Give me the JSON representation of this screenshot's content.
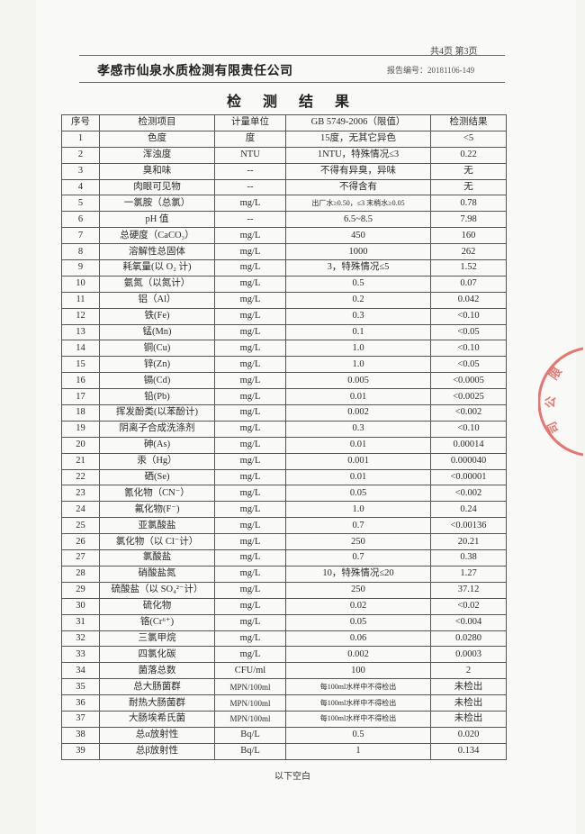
{
  "header": {
    "page_indicator": "共4页 第3页",
    "company": "孝感市仙泉水质检测有限责任公司",
    "report_number": "报告编号：20181106-149",
    "title": "检 测 结 果"
  },
  "table": {
    "columns": [
      "序号",
      "检测项目",
      "计量单位",
      "GB 5749-2006（限值）",
      "检测结果"
    ],
    "rows": [
      [
        "1",
        "色度",
        "度",
        "15度，无其它异色",
        "<5"
      ],
      [
        "2",
        "浑浊度",
        "NTU",
        "1NTU，特殊情况≤3",
        "0.22"
      ],
      [
        "3",
        "臭和味",
        "--",
        "不得有异臭，异味",
        "无"
      ],
      [
        "4",
        "肉眼可见物",
        "--",
        "不得含有",
        "无"
      ],
      [
        "5",
        "一氯胺（总氯）",
        "mg/L",
        "出厂水≥0.50，≤3 末梢水≥0.05",
        "0.78"
      ],
      [
        "6",
        "pH 值",
        "--",
        "6.5~8.5",
        "7.98"
      ],
      [
        "7",
        "总硬度（CaCO₃）",
        "mg/L",
        "450",
        "160"
      ],
      [
        "8",
        "溶解性总固体",
        "mg/L",
        "1000",
        "262"
      ],
      [
        "9",
        "耗氧量(以 O₂ 计)",
        "mg/L",
        "3，特殊情况≤5",
        "1.52"
      ],
      [
        "10",
        "氨氮（以氮计）",
        "mg/L",
        "0.5",
        "0.07"
      ],
      [
        "11",
        "铝（Al）",
        "mg/L",
        "0.2",
        "0.042"
      ],
      [
        "12",
        "铁(Fe)",
        "mg/L",
        "0.3",
        "<0.10"
      ],
      [
        "13",
        "锰(Mn)",
        "mg/L",
        "0.1",
        "<0.05"
      ],
      [
        "14",
        "铜(Cu)",
        "mg/L",
        "1.0",
        "<0.10"
      ],
      [
        "15",
        "锌(Zn)",
        "mg/L",
        "1.0",
        "<0.05"
      ],
      [
        "16",
        "镉(Cd)",
        "mg/L",
        "0.005",
        "<0.0005"
      ],
      [
        "17",
        "铅(Pb)",
        "mg/L",
        "0.01",
        "<0.0025"
      ],
      [
        "18",
        "挥发酚类(以苯酚计)",
        "mg/L",
        "0.002",
        "<0.002"
      ],
      [
        "19",
        "阴离子合成洗涤剂",
        "mg/L",
        "0.3",
        "<0.10"
      ],
      [
        "20",
        "砷(As)",
        "mg/L",
        "0.01",
        "0.00014"
      ],
      [
        "21",
        "汞（Hg）",
        "mg/L",
        "0.001",
        "0.000040"
      ],
      [
        "22",
        "硒(Se)",
        "mg/L",
        "0.01",
        "<0.00001"
      ],
      [
        "23",
        "氰化物（CN⁻）",
        "mg/L",
        "0.05",
        "<0.002"
      ],
      [
        "24",
        "氟化物(F⁻)",
        "mg/L",
        "1.0",
        "0.24"
      ],
      [
        "25",
        "亚氯酸盐",
        "mg/L",
        "0.7",
        "<0.00136"
      ],
      [
        "26",
        "氯化物（以 Cl⁻计）",
        "mg/L",
        "250",
        "20.21"
      ],
      [
        "27",
        "氯酸盐",
        "mg/L",
        "0.7",
        "0.38"
      ],
      [
        "28",
        "硝酸盐氮",
        "mg/L",
        "10，特殊情况≤20",
        "1.27"
      ],
      [
        "29",
        "硫酸盐（以 SO₄²⁻计）",
        "mg/L",
        "250",
        "37.12"
      ],
      [
        "30",
        "硫化物",
        "mg/L",
        "0.02",
        "<0.02"
      ],
      [
        "31",
        "铬(Cr⁶⁺)",
        "mg/L",
        "0.05",
        "<0.004"
      ],
      [
        "32",
        "三氯甲烷",
        "mg/L",
        "0.06",
        "0.0280"
      ],
      [
        "33",
        "四氯化碳",
        "mg/L",
        "0.002",
        "0.0003"
      ],
      [
        "34",
        "菌落总数",
        "CFU/ml",
        "100",
        "2"
      ],
      [
        "35",
        "总大肠菌群",
        "MPN/100ml",
        "每100ml水样中不得检出",
        "未检出"
      ],
      [
        "36",
        "耐热大肠菌群",
        "MPN/100ml",
        "每100ml水样中不得检出",
        "未检出"
      ],
      [
        "37",
        "大肠埃希氏菌",
        "MPN/100ml",
        "每100ml水样中不得检出",
        "未检出"
      ],
      [
        "38",
        "总α放射性",
        "Bq/L",
        "0.5",
        "0.020"
      ],
      [
        "39",
        "总β放射性",
        "Bq/L",
        "1",
        "0.134"
      ]
    ]
  },
  "footer": {
    "note": "以下空白"
  },
  "stamp": {
    "color": "#e0574f",
    "text": "限公司 检测专用章"
  }
}
